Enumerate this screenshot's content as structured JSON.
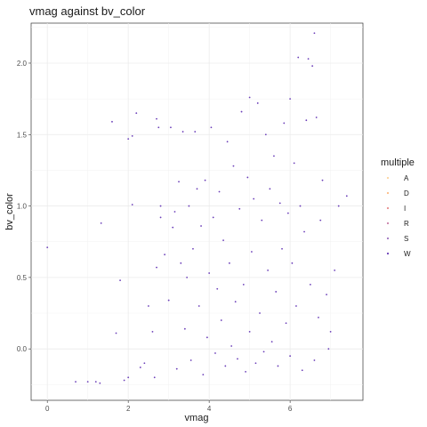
{
  "chart_data": {
    "type": "scatter",
    "title": "vmag against bv_color",
    "xlabel": "vmag",
    "ylabel": "bv_color",
    "xlim": [
      -0.4,
      7.8
    ],
    "ylim": [
      -0.36,
      2.28
    ],
    "x_ticks": [
      0,
      2,
      4,
      6
    ],
    "x_tick_labels": [
      "0",
      "2",
      "4",
      "6"
    ],
    "y_ticks": [
      0.0,
      0.5,
      1.0,
      1.5,
      2.0
    ],
    "y_tick_labels": [
      "0.0",
      "0.5",
      "1.0",
      "1.5",
      "2.0"
    ],
    "grid": true,
    "legend": {
      "title": "multiple",
      "position": "right",
      "entries": [
        {
          "label": "A",
          "color": "#fdd49e"
        },
        {
          "label": "D",
          "color": "#fdbb84"
        },
        {
          "label": "I",
          "color": "#e88e8e"
        },
        {
          "label": "R",
          "color": "#c97fa8"
        },
        {
          "label": "S",
          "color": "#9e73c0"
        },
        {
          "label": "W",
          "color": "#6a3db8"
        }
      ]
    },
    "series": [
      {
        "name": "W",
        "points": [
          [
            0.0,
            0.71
          ],
          [
            0.7,
            -0.23
          ],
          [
            1.0,
            -0.23
          ],
          [
            1.2,
            -0.23
          ],
          [
            1.3,
            -0.24
          ],
          [
            1.33,
            0.88
          ],
          [
            1.6,
            1.59
          ],
          [
            1.7,
            0.11
          ],
          [
            1.8,
            0.48
          ],
          [
            1.9,
            -0.22
          ],
          [
            2.0,
            1.47
          ],
          [
            2.0,
            -0.2
          ],
          [
            2.1,
            1.49
          ],
          [
            2.1,
            1.01
          ],
          [
            2.2,
            1.65
          ],
          [
            2.3,
            -0.13
          ],
          [
            2.4,
            -0.1
          ],
          [
            2.5,
            0.3
          ],
          [
            2.6,
            0.12
          ],
          [
            2.65,
            -0.2
          ],
          [
            2.7,
            1.61
          ],
          [
            2.7,
            0.57
          ],
          [
            2.75,
            1.55
          ],
          [
            2.8,
            0.92
          ],
          [
            2.8,
            1.0
          ],
          [
            2.9,
            0.66
          ],
          [
            3.0,
            0.34
          ],
          [
            3.05,
            1.55
          ],
          [
            3.1,
            0.85
          ],
          [
            3.15,
            0.96
          ],
          [
            3.2,
            -0.14
          ],
          [
            3.25,
            1.17
          ],
          [
            3.3,
            0.6
          ],
          [
            3.35,
            1.52
          ],
          [
            3.4,
            0.14
          ],
          [
            3.45,
            0.5
          ],
          [
            3.5,
            1.0
          ],
          [
            3.55,
            -0.08
          ],
          [
            3.6,
            0.7
          ],
          [
            3.65,
            1.52
          ],
          [
            3.7,
            1.12
          ],
          [
            3.75,
            0.3
          ],
          [
            3.8,
            0.86
          ],
          [
            3.85,
            -0.18
          ],
          [
            3.9,
            1.18
          ],
          [
            3.95,
            0.08
          ],
          [
            4.0,
            0.53
          ],
          [
            4.05,
            1.55
          ],
          [
            4.1,
            0.92
          ],
          [
            4.15,
            -0.03
          ],
          [
            4.2,
            0.42
          ],
          [
            4.25,
            1.1
          ],
          [
            4.3,
            0.2
          ],
          [
            4.35,
            0.76
          ],
          [
            4.4,
            -0.12
          ],
          [
            4.45,
            1.45
          ],
          [
            4.5,
            0.6
          ],
          [
            4.55,
            0.02
          ],
          [
            4.6,
            1.28
          ],
          [
            4.65,
            0.33
          ],
          [
            4.7,
            -0.07
          ],
          [
            4.75,
            0.98
          ],
          [
            4.8,
            1.66
          ],
          [
            4.85,
            0.45
          ],
          [
            4.9,
            -0.16
          ],
          [
            4.95,
            1.2
          ],
          [
            5.0,
            1.76
          ],
          [
            5.0,
            0.12
          ],
          [
            5.05,
            0.68
          ],
          [
            5.1,
            1.05
          ],
          [
            5.15,
            -0.1
          ],
          [
            5.2,
            1.72
          ],
          [
            5.25,
            0.25
          ],
          [
            5.3,
            0.9
          ],
          [
            5.35,
            -0.02
          ],
          [
            5.4,
            1.5
          ],
          [
            5.45,
            0.55
          ],
          [
            5.5,
            1.12
          ],
          [
            5.55,
            0.05
          ],
          [
            5.6,
            1.35
          ],
          [
            5.65,
            0.4
          ],
          [
            5.7,
            -0.12
          ],
          [
            5.75,
            1.02
          ],
          [
            5.8,
            0.7
          ],
          [
            5.85,
            1.58
          ],
          [
            5.9,
            0.18
          ],
          [
            5.95,
            0.95
          ],
          [
            6.0,
            1.75
          ],
          [
            6.0,
            -0.05
          ],
          [
            6.05,
            0.6
          ],
          [
            6.1,
            1.3
          ],
          [
            6.15,
            0.3
          ],
          [
            6.2,
            2.04
          ],
          [
            6.25,
            1.0
          ],
          [
            6.3,
            -0.15
          ],
          [
            6.35,
            0.82
          ],
          [
            6.4,
            1.6
          ],
          [
            6.45,
            2.03
          ],
          [
            6.5,
            0.45
          ],
          [
            6.55,
            1.98
          ],
          [
            6.6,
            2.21
          ],
          [
            6.6,
            -0.08
          ],
          [
            6.65,
            1.62
          ],
          [
            6.7,
            0.22
          ],
          [
            6.8,
            1.18
          ],
          [
            6.9,
            0.38
          ],
          [
            7.0,
            0.12
          ],
          [
            7.2,
            1.0
          ],
          [
            7.4,
            1.07
          ],
          [
            7.1,
            0.55
          ],
          [
            6.95,
            0.0
          ],
          [
            6.75,
            0.9
          ]
        ]
      }
    ]
  }
}
